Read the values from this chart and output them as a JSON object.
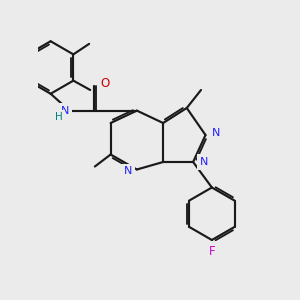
{
  "background_color": "#ebebeb",
  "bond_color": "#1a1a1a",
  "atom_colors": {
    "N": "#2020ff",
    "O": "#cc0000",
    "F": "#cc00cc",
    "H": "#008080",
    "C": "#1a1a1a"
  },
  "figsize": [
    3.0,
    3.0
  ],
  "dpi": 100
}
